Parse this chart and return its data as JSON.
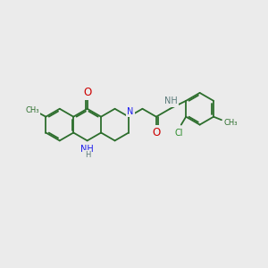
{
  "bg_color": "#ebebeb",
  "bond_color": "#2d6e2d",
  "N_color": "#1a1aee",
  "O_color": "#cc0000",
  "Cl_color": "#2a8c2a",
  "NH_color": "#5a7a7a",
  "fig_size": [
    3.0,
    3.0
  ],
  "dpi": 100,
  "xlim": [
    0,
    10
  ],
  "ylim": [
    0,
    10
  ]
}
